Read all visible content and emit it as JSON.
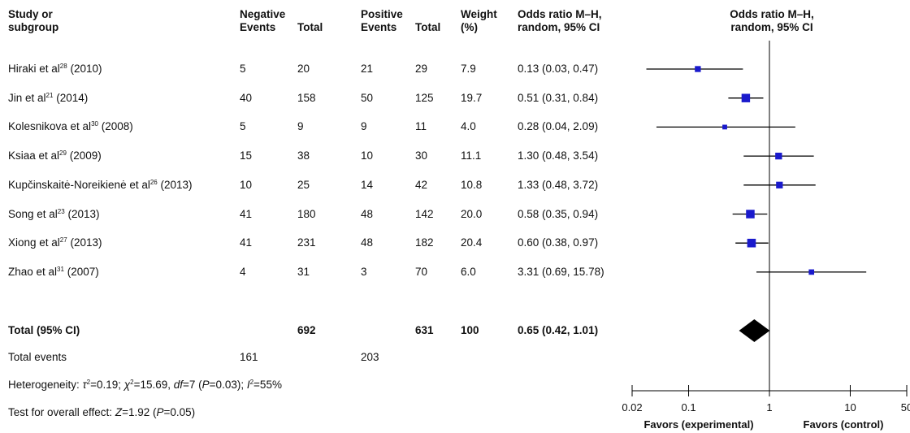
{
  "header": {
    "study_l1": "Study or",
    "study_l2": "subgroup",
    "neg_title": "Negative",
    "pos_title": "Positive",
    "events": "Events",
    "total": "Total",
    "weight_l1": "Weight",
    "weight_l2": "(%)",
    "or_l1": "Odds ratio M–H,",
    "or_l2": "random, 95% CI",
    "plot_l1": "Odds ratio M–H,",
    "plot_l2": "random, 95% CI"
  },
  "studies": [
    {
      "author": "Hiraki et al",
      "ref": "28",
      "year": "(2010)",
      "neg_events": "5",
      "neg_total": "20",
      "pos_events": "21",
      "pos_total": "29",
      "weight": "7.9",
      "ci_text": "0.13 (0.03, 0.47)"
    },
    {
      "author": "Jin et al",
      "ref": "21",
      "year": "(2014)",
      "neg_events": "40",
      "neg_total": "158",
      "pos_events": "50",
      "pos_total": "125",
      "weight": "19.7",
      "ci_text": "0.51 (0.31, 0.84)"
    },
    {
      "author": "Kolesnikova et al",
      "ref": "30",
      "year": "(2008)",
      "neg_events": "5",
      "neg_total": "9",
      "pos_events": "9",
      "pos_total": "11",
      "weight": "4.0",
      "ci_text": "0.28 (0.04, 2.09)"
    },
    {
      "author": "Ksiaa et al",
      "ref": "29",
      "year": "(2009)",
      "neg_events": "15",
      "neg_total": "38",
      "pos_events": "10",
      "pos_total": "30",
      "weight": "11.1",
      "ci_text": "1.30 (0.48, 3.54)"
    },
    {
      "author": "Kupčinskaitė-Noreikienė et al",
      "ref": "26",
      "year": "(2013)",
      "neg_events": "10",
      "neg_total": "25",
      "pos_events": "14",
      "pos_total": "42",
      "weight": "10.8",
      "ci_text": "1.33 (0.48, 3.72)"
    },
    {
      "author": "Song et al",
      "ref": "23",
      "year": "(2013)",
      "neg_events": "41",
      "neg_total": "180",
      "pos_events": "48",
      "pos_total": "142",
      "weight": "20.0",
      "ci_text": "0.58 (0.35, 0.94)"
    },
    {
      "author": "Xiong et al",
      "ref": "27",
      "year": "(2013)",
      "neg_events": "41",
      "neg_total": "231",
      "pos_events": "48",
      "pos_total": "182",
      "weight": "20.4",
      "ci_text": "0.60 (0.38, 0.97)"
    },
    {
      "author": "Zhao et al",
      "ref": "31",
      "year": "(2007)",
      "neg_events": "4",
      "neg_total": "31",
      "pos_events": "3",
      "pos_total": "70",
      "weight": "6.0",
      "ci_text": "3.31 (0.69, 15.78)"
    }
  ],
  "total": {
    "label": "Total (95% CI)",
    "neg_total": "692",
    "pos_total": "631",
    "weight": "100",
    "ci_text": "0.65 (0.42, 1.01)"
  },
  "total_events": {
    "label": "Total events",
    "neg": "161",
    "pos": "203"
  },
  "heterogeneity": {
    "label": "Heterogeneity: ",
    "tau_sym": "τ",
    "tau_rest": "=0.19; ",
    "chi_sym": "χ",
    "chi_rest": "=15.69, ",
    "df_sym": "df",
    "df_rest": "=7 (",
    "p_sym": "P",
    "p_rest": "=0.03); ",
    "i_sym": "I",
    "i_rest": "=55%",
    "sq": "2"
  },
  "overall": {
    "label": "Test for overall effect: ",
    "z_sym": "Z",
    "z_rest": "=1.92 (",
    "p_sym": "P",
    "p_rest": "=0.05)"
  },
  "chart_data": {
    "type": "forest",
    "x_scale": "log",
    "xlim": [
      0.02,
      50
    ],
    "x_ticks": [
      0.02,
      0.1,
      1,
      10,
      50
    ],
    "x_tick_labels": [
      "0.02",
      "0.1",
      "1",
      "10",
      "50"
    ],
    "left_favor": "Favors (experimental)",
    "right_favor": "Favors (control)",
    "null_line": 1,
    "colors": {
      "square": "#1a1acc",
      "line": "#000000",
      "diamond": "#000000"
    },
    "studies": [
      {
        "or": 0.13,
        "lo": 0.03,
        "hi": 0.47,
        "weight": 7.9
      },
      {
        "or": 0.51,
        "lo": 0.31,
        "hi": 0.84,
        "weight": 19.7
      },
      {
        "or": 0.28,
        "lo": 0.04,
        "hi": 2.09,
        "weight": 4.0
      },
      {
        "or": 1.3,
        "lo": 0.48,
        "hi": 3.54,
        "weight": 11.1
      },
      {
        "or": 1.33,
        "lo": 0.48,
        "hi": 3.72,
        "weight": 10.8
      },
      {
        "or": 0.58,
        "lo": 0.35,
        "hi": 0.94,
        "weight": 20.0
      },
      {
        "or": 0.6,
        "lo": 0.38,
        "hi": 0.97,
        "weight": 20.4
      },
      {
        "or": 3.31,
        "lo": 0.69,
        "hi": 15.78,
        "weight": 6.0
      }
    ],
    "total": {
      "or": 0.65,
      "lo": 0.42,
      "hi": 1.01
    }
  }
}
